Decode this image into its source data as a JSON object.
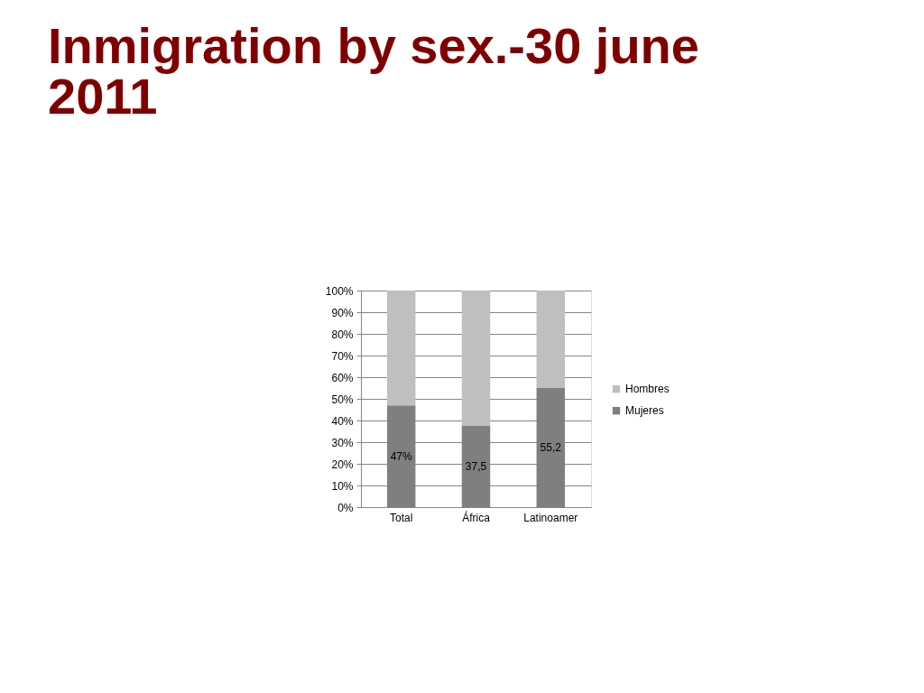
{
  "chart_data": {
    "type": "bar",
    "title": "Inmigration by sex.-30 june 2011",
    "categories": [
      "Total",
      "África",
      "Latinoamer"
    ],
    "series": [
      {
        "name": "Mujeres",
        "color": "#7f7f7f",
        "values": [
          47,
          37.5,
          55.2
        ],
        "value_labels": [
          "47%",
          "37,5",
          "55,2"
        ]
      },
      {
        "name": "Hombres",
        "color": "#bfbfbf",
        "values": [
          53,
          62.5,
          44.8
        ]
      }
    ],
    "stacked": true,
    "ylim": [
      0,
      100
    ],
    "yticks": [
      {
        "value": 0,
        "label": "0%"
      },
      {
        "value": 10,
        "label": "10%"
      },
      {
        "value": 20,
        "label": "20%"
      },
      {
        "value": 30,
        "label": "30%"
      },
      {
        "value": 40,
        "label": "40%"
      },
      {
        "value": 50,
        "label": "50%"
      },
      {
        "value": 60,
        "label": "60%"
      },
      {
        "value": 70,
        "label": "70%"
      },
      {
        "value": 80,
        "label": "80%"
      },
      {
        "value": 90,
        "label": "90%"
      },
      {
        "value": 100,
        "label": "100%"
      }
    ],
    "grid": "y",
    "legend": "right"
  }
}
